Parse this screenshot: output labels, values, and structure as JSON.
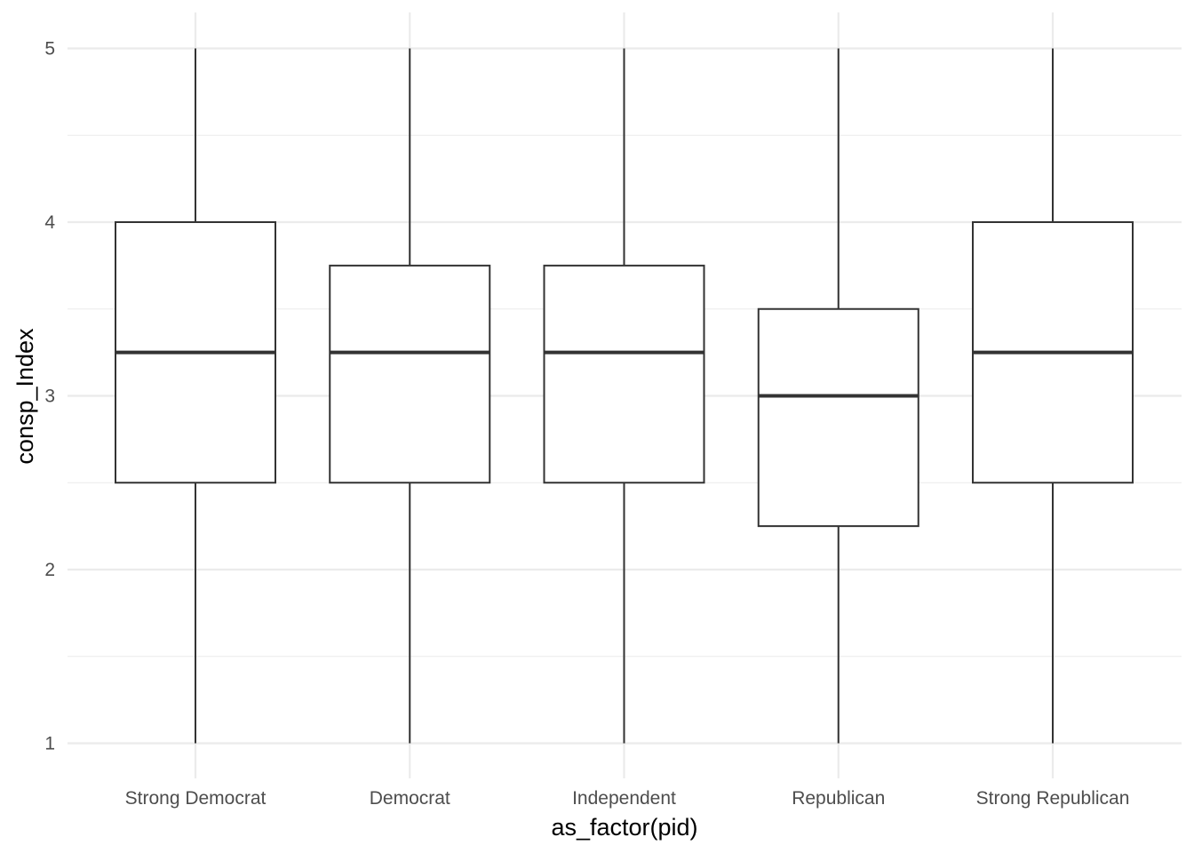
{
  "chart_data": {
    "type": "boxplot",
    "xlabel": "as_factor(pid)",
    "ylabel": "consp_Index",
    "ylim": [
      0.8,
      5.2
    ],
    "yticks": [
      1,
      2,
      3,
      4,
      5
    ],
    "grid": true,
    "categories": [
      "Strong Democrat",
      "Democrat",
      "Independent",
      "Republican",
      "Strong Republican"
    ],
    "boxes": [
      {
        "category": "Strong Democrat",
        "min": 1,
        "q1": 2.5,
        "median": 3.25,
        "q3": 4.0,
        "max": 5
      },
      {
        "category": "Democrat",
        "min": 1,
        "q1": 2.5,
        "median": 3.25,
        "q3": 3.75,
        "max": 5
      },
      {
        "category": "Independent",
        "min": 1,
        "q1": 2.5,
        "median": 3.25,
        "q3": 3.75,
        "max": 5
      },
      {
        "category": "Republican",
        "min": 1,
        "q1": 2.25,
        "median": 3.0,
        "q3": 3.5,
        "max": 5
      },
      {
        "category": "Strong Republican",
        "min": 1,
        "q1": 2.5,
        "median": 3.25,
        "q3": 4.0,
        "max": 5
      }
    ]
  }
}
